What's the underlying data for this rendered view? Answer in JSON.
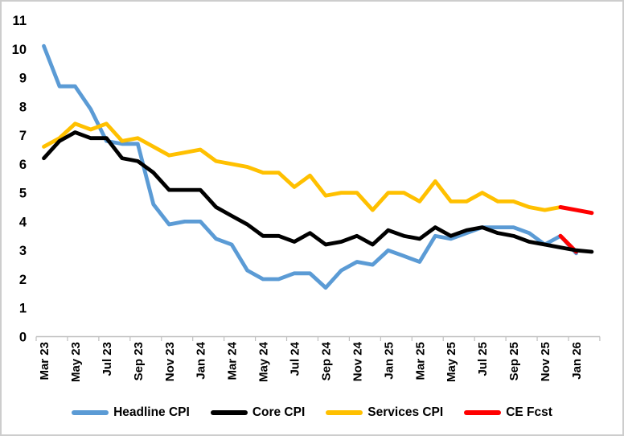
{
  "chart_data": {
    "type": "line",
    "grid": false,
    "legend_position": "bottom",
    "ylim": [
      0,
      11
    ],
    "yticks": [
      0,
      1,
      2,
      3,
      4,
      5,
      6,
      7,
      8,
      9,
      10,
      11
    ],
    "months": [
      "Mar 23",
      "Apr 23",
      "May 23",
      "Jun 23",
      "Jul 23",
      "Aug 23",
      "Sep 23",
      "Oct 23",
      "Nov 23",
      "Dec 23",
      "Jan 24",
      "Feb 24",
      "Mar 24",
      "Apr 24",
      "May 24",
      "Jun 24",
      "Jul 24",
      "Aug 24",
      "Sep 24",
      "Oct 24",
      "Nov 24",
      "Dec 24",
      "Jan 25",
      "Feb 25",
      "Mar 25",
      "Apr 25",
      "May 25",
      "Jun 25",
      "Jul 25",
      "Aug 25",
      "Sep 25",
      "Oct 25",
      "Nov 25",
      "Dec 25",
      "Jan 26",
      "Feb 26"
    ],
    "x_tick_labels": [
      "Mar 23",
      "May 23",
      "Jul 23",
      "Sep 23",
      "Nov 23",
      "Jan 24",
      "Mar 24",
      "May 24",
      "Jul 24",
      "Sep 24",
      "Nov 24",
      "Jan 25",
      "Mar 25",
      "May 25",
      "Jul 25",
      "Sep 25",
      "Nov 25",
      "Jan 26"
    ],
    "axis_color": "#bfbfbf",
    "text_color": "#000000",
    "draw_order": [
      "Headline CPI",
      "Services CPI",
      "CE Fcst",
      "Core CPI"
    ],
    "series": [
      {
        "name": "Headline CPI",
        "color": "#5B9BD5",
        "values": [
          10.1,
          8.7,
          8.7,
          7.9,
          6.8,
          6.7,
          6.7,
          4.6,
          3.9,
          4.0,
          4.0,
          3.4,
          3.2,
          2.3,
          2.0,
          2.0,
          2.2,
          2.2,
          1.7,
          2.3,
          2.6,
          2.5,
          3.0,
          2.8,
          2.6,
          3.5,
          3.4,
          3.6,
          3.8,
          3.8,
          3.8,
          3.6,
          3.2,
          3.5,
          2.9,
          null
        ]
      },
      {
        "name": "Core CPI",
        "color": "#000000",
        "values": [
          6.2,
          6.8,
          7.1,
          6.9,
          6.9,
          6.2,
          6.1,
          5.7,
          5.1,
          5.1,
          5.1,
          4.5,
          4.2,
          3.9,
          3.5,
          3.5,
          3.3,
          3.6,
          3.2,
          3.3,
          3.5,
          3.2,
          3.7,
          3.5,
          3.4,
          3.8,
          3.5,
          3.7,
          3.8,
          3.6,
          3.5,
          3.3,
          3.2,
          3.1,
          3.0,
          2.95
        ]
      },
      {
        "name": "Services CPI",
        "color": "#FFC000",
        "values": [
          6.6,
          6.9,
          7.4,
          7.2,
          7.4,
          6.8,
          6.9,
          6.6,
          6.3,
          6.4,
          6.5,
          6.1,
          6.0,
          5.9,
          5.7,
          5.7,
          5.2,
          5.6,
          4.9,
          5.0,
          5.0,
          4.4,
          5.0,
          5.0,
          4.7,
          5.4,
          4.7,
          4.7,
          5.0,
          4.7,
          4.7,
          4.5,
          4.4,
          4.5,
          null,
          null
        ]
      },
      {
        "name": "CE Fcst",
        "color": "#FF0000",
        "values": null,
        "segments": [
          {
            "start_month": "Dec 25",
            "values": [
              4.5,
              4.4,
              4.3
            ]
          },
          {
            "start_month": "Dec 25",
            "values": [
              3.5,
              2.95
            ]
          }
        ]
      }
    ]
  }
}
